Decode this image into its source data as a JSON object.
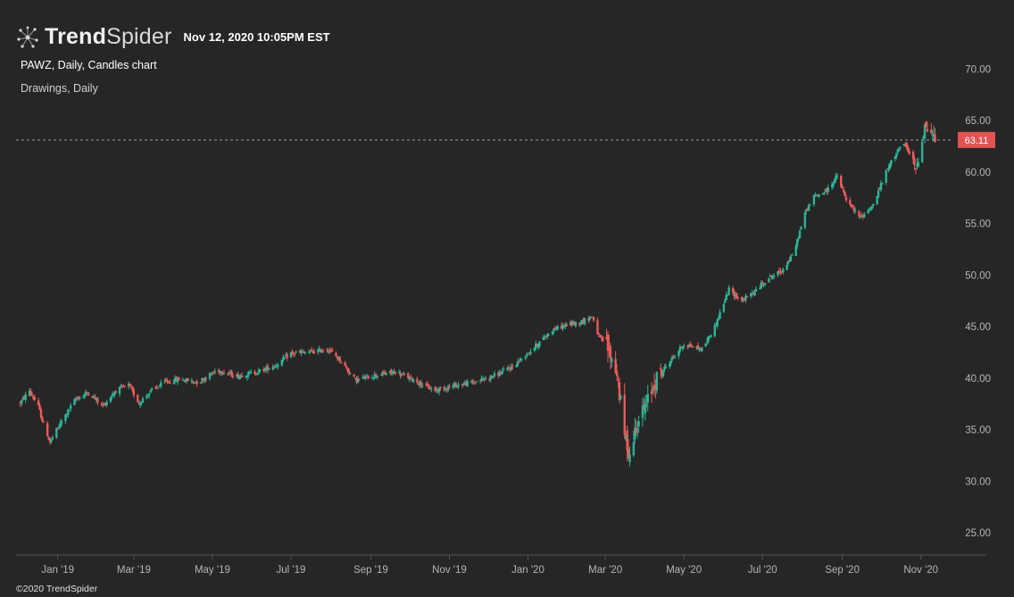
{
  "header": {
    "brand_bold": "Trend",
    "brand_light": "Spider",
    "logo_icon": "spider-network-icon",
    "timestamp": "Nov 12, 2020 10:05PM EST"
  },
  "chart_info": {
    "title": "PAWZ, Daily, Candles chart",
    "drawings": "Drawings, Daily"
  },
  "footer": {
    "copyright": "©2020 TrendSpider"
  },
  "colors": {
    "background": "#262626",
    "up_candle": "#2bb596",
    "down_candle": "#ec5a5a",
    "price_tag": "#e25454",
    "axis": "#555555",
    "axis_text": "#b5b5b5"
  },
  "chart_data": {
    "type": "candlestick",
    "symbol": "PAWZ",
    "interval": "Daily",
    "ylim": [
      22.5,
      72
    ],
    "y_ticks": [
      "70.00",
      "65.00",
      "60.00",
      "55.00",
      "50.00",
      "45.00",
      "40.00",
      "35.00",
      "30.00",
      "25.00"
    ],
    "x_range": [
      "2018-12-01",
      "2020-12-01"
    ],
    "x_ticks": [
      {
        "label": "Jan '19",
        "date": "2019-01-01"
      },
      {
        "label": "Mar '19",
        "date": "2019-03-01"
      },
      {
        "label": "May '19",
        "date": "2019-05-01"
      },
      {
        "label": "Jul '19",
        "date": "2019-07-01"
      },
      {
        "label": "Sep '19",
        "date": "2019-09-01"
      },
      {
        "label": "Nov '19",
        "date": "2019-11-01"
      },
      {
        "label": "Jan '20",
        "date": "2020-01-01"
      },
      {
        "label": "Mar '20",
        "date": "2020-03-01"
      },
      {
        "label": "May '20",
        "date": "2020-05-01"
      },
      {
        "label": "Jul '20",
        "date": "2020-07-01"
      },
      {
        "label": "Sep '20",
        "date": "2020-09-01"
      },
      {
        "label": "Nov '20",
        "date": "2020-11-01"
      }
    ],
    "last_price": 63.11,
    "last_price_label": "63.11",
    "price_path": [
      [
        "2018-12-03",
        37.6
      ],
      [
        "2018-12-10",
        38.8
      ],
      [
        "2018-12-17",
        37.2
      ],
      [
        "2018-12-21",
        35.5
      ],
      [
        "2018-12-26",
        33.8
      ],
      [
        "2019-01-04",
        35.8
      ],
      [
        "2019-01-15",
        38.0
      ],
      [
        "2019-01-25",
        38.6
      ],
      [
        "2019-02-05",
        37.3
      ],
      [
        "2019-02-15",
        38.8
      ],
      [
        "2019-02-25",
        39.3
      ],
      [
        "2019-03-05",
        37.6
      ],
      [
        "2019-03-15",
        38.8
      ],
      [
        "2019-03-25",
        39.6
      ],
      [
        "2019-04-05",
        39.9
      ],
      [
        "2019-04-20",
        39.6
      ],
      [
        "2019-05-05",
        40.8
      ],
      [
        "2019-05-20",
        40.2
      ],
      [
        "2019-06-05",
        40.6
      ],
      [
        "2019-06-20",
        41.3
      ],
      [
        "2019-07-01",
        42.4
      ],
      [
        "2019-07-15",
        42.5
      ],
      [
        "2019-07-30",
        42.8
      ],
      [
        "2019-08-08",
        41.8
      ],
      [
        "2019-08-20",
        39.8
      ],
      [
        "2019-09-05",
        40.3
      ],
      [
        "2019-09-20",
        40.6
      ],
      [
        "2019-10-05",
        39.8
      ],
      [
        "2019-10-20",
        38.8
      ],
      [
        "2019-11-05",
        39.3
      ],
      [
        "2019-11-20",
        39.6
      ],
      [
        "2019-12-05",
        40.2
      ],
      [
        "2019-12-20",
        41.1
      ],
      [
        "2020-01-05",
        42.9
      ],
      [
        "2020-01-20",
        44.7
      ],
      [
        "2020-02-01",
        45.2
      ],
      [
        "2020-02-10",
        45.4
      ],
      [
        "2020-02-20",
        46.0
      ],
      [
        "2020-02-25",
        44.0
      ],
      [
        "2020-03-02",
        43.2
      ],
      [
        "2020-03-10",
        40.5
      ],
      [
        "2020-03-16",
        34.5
      ],
      [
        "2020-03-20",
        32.4
      ],
      [
        "2020-03-25",
        35.5
      ],
      [
        "2020-04-01",
        37.2
      ],
      [
        "2020-04-10",
        40.0
      ],
      [
        "2020-04-20",
        41.6
      ],
      [
        "2020-05-01",
        43.3
      ],
      [
        "2020-05-15",
        42.8
      ],
      [
        "2020-05-25",
        45.0
      ],
      [
        "2020-06-05",
        48.6
      ],
      [
        "2020-06-15",
        47.5
      ],
      [
        "2020-06-25",
        48.4
      ],
      [
        "2020-07-05",
        49.7
      ],
      [
        "2020-07-15",
        50.3
      ],
      [
        "2020-07-25",
        52.0
      ],
      [
        "2020-08-03",
        56.0
      ],
      [
        "2020-08-10",
        57.6
      ],
      [
        "2020-08-20",
        58.2
      ],
      [
        "2020-08-28",
        59.6
      ],
      [
        "2020-09-05",
        57.0
      ],
      [
        "2020-09-15",
        55.6
      ],
      [
        "2020-09-25",
        56.8
      ],
      [
        "2020-10-05",
        60.0
      ],
      [
        "2020-10-14",
        62.2
      ],
      [
        "2020-10-20",
        62.6
      ],
      [
        "2020-10-28",
        60.2
      ],
      [
        "2020-11-04",
        64.5
      ],
      [
        "2020-11-09",
        63.8
      ],
      [
        "2020-11-12",
        63.1
      ]
    ]
  }
}
